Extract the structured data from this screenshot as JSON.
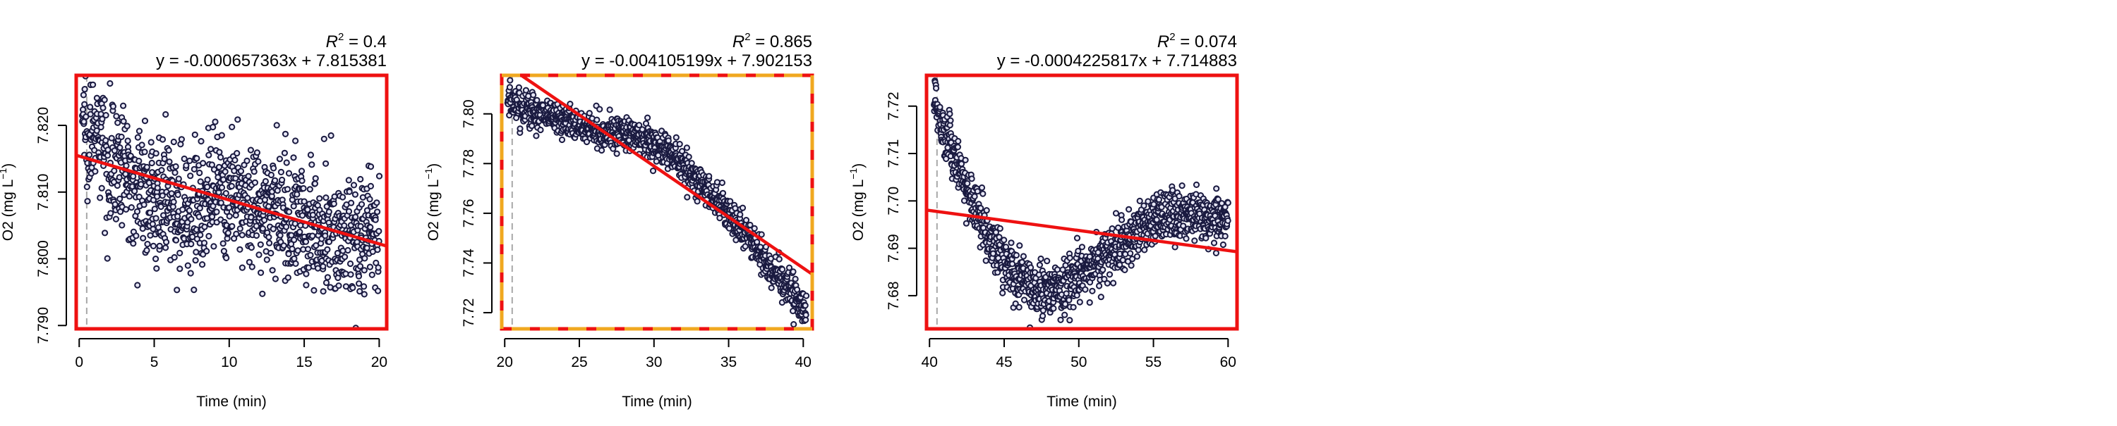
{
  "chart_data": [
    {
      "type": "scatter",
      "r2_label": "R",
      "r2_value": "= 0.4",
      "equation": "y = -0.000657363x + 7.815381",
      "xlabel": "Time (min)",
      "ylabel": "O2 (mg L",
      "ylabel_exp": "−1",
      "xlim": [
        -0.2,
        20.5
      ],
      "ylim": [
        7.7895,
        7.8275
      ],
      "xticks": [
        0,
        5,
        10,
        15,
        20
      ],
      "yticks": [
        7.79,
        7.8,
        7.81,
        7.82
      ],
      "ytick_labels": [
        "7.790",
        "7.800",
        "7.810",
        "7.820"
      ],
      "fit": {
        "slope": -0.000657363,
        "intercept": 7.815381,
        "x_range": [
          -0.2,
          20.5
        ]
      },
      "marker_line_x": 0.5,
      "trend": {
        "x": [
          0.2,
          1,
          2,
          3,
          4,
          5,
          6,
          7,
          8,
          9,
          10,
          11,
          12,
          13,
          14,
          15,
          16,
          17,
          18,
          19,
          20
        ],
        "y": [
          7.8215,
          7.818,
          7.8155,
          7.813,
          7.811,
          7.809,
          7.808,
          7.8075,
          7.808,
          7.809,
          7.809,
          7.8085,
          7.808,
          7.807,
          7.806,
          7.8055,
          7.805,
          7.804,
          7.8035,
          7.8035,
          7.804
        ]
      },
      "n_points": 1150,
      "noise": 0.0045,
      "border": "solid"
    },
    {
      "type": "scatter",
      "r2_label": "R",
      "r2_value": "= 0.865",
      "equation": "y = -0.004105199x + 7.902153",
      "xlabel": "Time (min)",
      "ylabel": "O2 (mg L",
      "ylabel_exp": "−1",
      "xlim": [
        19.8,
        40.6
      ],
      "ylim": [
        7.7135,
        7.8155
      ],
      "xticks": [
        20,
        25,
        30,
        35,
        40
      ],
      "yticks": [
        7.72,
        7.74,
        7.76,
        7.78,
        7.8
      ],
      "ytick_labels": [
        "7.72",
        "7.74",
        "7.76",
        "7.78",
        "7.80"
      ],
      "fit": {
        "slope": -0.004105199,
        "intercept": 7.902153,
        "x_range": [
          19.8,
          40.6
        ]
      },
      "marker_line_x": 20.5,
      "trend": {
        "x": [
          20.2,
          21,
          22,
          23,
          24,
          25,
          26,
          27,
          28,
          29,
          30,
          31,
          32,
          33,
          34,
          35,
          36,
          37,
          38,
          39,
          40.2
        ],
        "y": [
          7.805,
          7.803,
          7.801,
          7.799,
          7.797,
          7.795,
          7.794,
          7.793,
          7.792,
          7.7905,
          7.788,
          7.784,
          7.779,
          7.7725,
          7.7665,
          7.76,
          7.753,
          7.745,
          7.737,
          7.729,
          7.7215
        ]
      },
      "n_points": 1150,
      "noise": 0.0035,
      "border": "dashed"
    },
    {
      "type": "scatter",
      "r2_label": "R",
      "r2_value": "= 0.074",
      "equation": "y = -0.0004225817x + 7.714883",
      "xlabel": "Time (min)",
      "ylabel": "O2 (mg L",
      "ylabel_exp": "−1",
      "xlim": [
        39.8,
        60.6
      ],
      "ylim": [
        7.673,
        7.7265
      ],
      "xticks": [
        40,
        45,
        50,
        55,
        60
      ],
      "yticks": [
        7.68,
        7.69,
        7.7,
        7.71,
        7.72
      ],
      "ytick_labels": [
        "7.68",
        "7.69",
        "7.70",
        "7.71",
        "7.72"
      ],
      "fit": {
        "slope": -0.0004225817,
        "intercept": 7.714883,
        "x_range": [
          39.8,
          60.6
        ]
      },
      "marker_line_x": 40.5,
      "trend": {
        "x": [
          40.3,
          41,
          42,
          43,
          44,
          45,
          46,
          47,
          48,
          49,
          50,
          51,
          52,
          53,
          54,
          55,
          56,
          57,
          58,
          59,
          60
        ],
        "y": [
          7.722,
          7.715,
          7.707,
          7.699,
          7.692,
          7.687,
          7.684,
          7.682,
          7.681,
          7.682,
          7.684,
          7.6865,
          7.689,
          7.6915,
          7.694,
          7.6955,
          7.6965,
          7.697,
          7.697,
          7.697,
          7.6965
        ]
      },
      "n_points": 1150,
      "noise": 0.0028,
      "border": "solid"
    }
  ],
  "colors": {
    "point_stroke": "#1a1a40",
    "point_fill": "#e6e6f5",
    "fit_line": "#ee1111",
    "border_solid": "#ee1111",
    "border_dashed_a": "#ee1111",
    "border_dashed_b": "#f0a820",
    "marker_line": "#a8a8a8"
  }
}
